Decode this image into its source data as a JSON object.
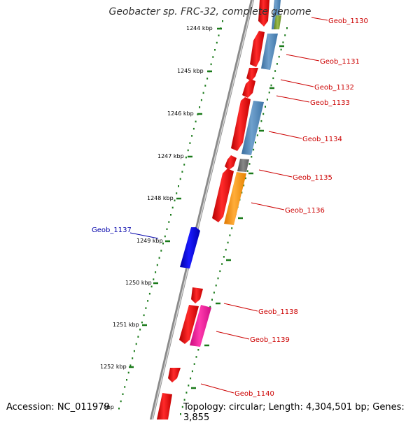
{
  "title": "Geobacter sp. FRC-32, complete genome",
  "footer": {
    "accession": "Accession: NC_011979",
    "info": "Topology: circular; Length: 4,304,501 bp; Genes: 3,855"
  },
  "ruler": {
    "unit": "kbp",
    "ticks": [
      "1244 kbp",
      "1245 kbp",
      "1246 kbp",
      "1247 kbp",
      "1248 kbp",
      "1249 kbp",
      "1250 kbp",
      "1251 kbp",
      "1252 kbp",
      "kbp"
    ]
  },
  "genes": [
    {
      "name": "Geob_1130",
      "color": "#cc0000"
    },
    {
      "name": "Geob_1131",
      "color": "#cc0000"
    },
    {
      "name": "Geob_1132",
      "color": "#cc0000"
    },
    {
      "name": "Geob_1133",
      "color": "#cc0000"
    },
    {
      "name": "Geob_1134",
      "color": "#cc0000"
    },
    {
      "name": "Geob_1135",
      "color": "#cc0000"
    },
    {
      "name": "Geob_1136",
      "color": "#cc0000"
    },
    {
      "name": "Geob_1137",
      "color": "#0000aa"
    },
    {
      "name": "Geob_1138",
      "color": "#cc0000"
    },
    {
      "name": "Geob_1139",
      "color": "#cc0000"
    },
    {
      "name": "Geob_1140",
      "color": "#cc0000"
    }
  ],
  "colors": {
    "backbone": "#8a8a8a",
    "ruler": "#1a7a1a",
    "cds": "#ff0000",
    "cds_reverse": "#0000ff",
    "steelblue": "#4f86b8",
    "orange": "#ff9a1a",
    "gray": "#6e6e6e",
    "magenta": "#f0169a",
    "olive": "#7a9a2a"
  }
}
